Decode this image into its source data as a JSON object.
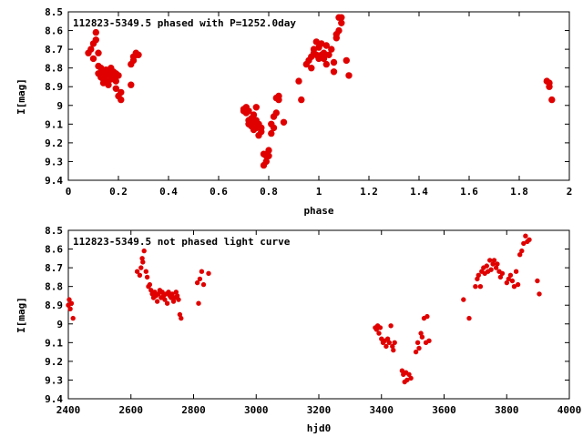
{
  "chart_data": [
    {
      "type": "scatter",
      "title": "112823-5349.5 phased with P=1252.0day",
      "xlabel": "phase",
      "ylabel": "I[mag]",
      "xlim": [
        0,
        2
      ],
      "ylim": [
        9.4,
        8.5
      ],
      "y_inverted": true,
      "grid": false,
      "point_color": "#e00000",
      "x_ticks": [
        "0",
        "0.2",
        "0.4",
        "0.6",
        "0.8",
        "1",
        "1.2",
        "1.4",
        "1.6",
        "1.8",
        "2"
      ],
      "y_ticks": [
        "8.5",
        "8.6",
        "8.7",
        "8.8",
        "8.9",
        "9",
        "9.1",
        "9.2",
        "9.3",
        "9.4"
      ],
      "series": [
        {
          "x": [
            0.08,
            0.09,
            0.1,
            0.1,
            0.11,
            0.11,
            0.12,
            0.12,
            0.12,
            0.13,
            0.13,
            0.14,
            0.14,
            0.14,
            0.15,
            0.15,
            0.15,
            0.16,
            0.16,
            0.17,
            0.17,
            0.17,
            0.18,
            0.18,
            0.19,
            0.19,
            0.19,
            0.2,
            0.2,
            0.21,
            0.21,
            0.25,
            0.25,
            0.26,
            0.26,
            0.27,
            0.27,
            0.28,
            0.7,
            0.7,
            0.71,
            0.71,
            0.72,
            0.72,
            0.72,
            0.73,
            0.73,
            0.74,
            0.74,
            0.74,
            0.75,
            0.75,
            0.75,
            0.76,
            0.76,
            0.77,
            0.77,
            0.78,
            0.78,
            0.79,
            0.79,
            0.8,
            0.8,
            0.81,
            0.81,
            0.82,
            0.82,
            0.83,
            0.83,
            0.84,
            0.84,
            0.86,
            0.92,
            0.93,
            0.95,
            0.96,
            0.97,
            0.97,
            0.98,
            0.98,
            0.99,
            0.99,
            1.0,
            1.0,
            1.01,
            1.01,
            1.02,
            1.02,
            1.03,
            1.03,
            1.04,
            1.05,
            1.06,
            1.06,
            1.07,
            1.07,
            1.08,
            1.08,
            1.09,
            1.09,
            1.11,
            1.12,
            1.91,
            1.92,
            1.92,
            1.93
          ],
          "y": [
            8.72,
            8.7,
            8.67,
            8.75,
            8.61,
            8.65,
            8.72,
            8.79,
            8.83,
            8.8,
            8.85,
            8.82,
            8.86,
            8.88,
            8.84,
            8.81,
            8.87,
            8.83,
            8.89,
            8.8,
            8.84,
            8.86,
            8.85,
            8.82,
            8.83,
            8.87,
            8.91,
            8.84,
            8.95,
            8.93,
            8.97,
            8.89,
            8.78,
            8.74,
            8.76,
            8.73,
            8.72,
            8.73,
            9.02,
            9.03,
            9.04,
            9.01,
            9.03,
            9.08,
            9.1,
            9.07,
            9.11,
            9.05,
            9.1,
            9.13,
            9.01,
            9.08,
            9.12,
            9.1,
            9.16,
            9.12,
            9.14,
            9.26,
            9.32,
            9.27,
            9.3,
            9.24,
            9.27,
            9.15,
            9.1,
            9.06,
            9.12,
            8.96,
            9.04,
            8.97,
            8.95,
            9.09,
            8.87,
            8.97,
            8.78,
            8.76,
            8.74,
            8.8,
            8.7,
            8.72,
            8.73,
            8.66,
            8.75,
            8.69,
            8.67,
            8.73,
            8.72,
            8.75,
            8.68,
            8.78,
            8.73,
            8.7,
            8.82,
            8.77,
            8.62,
            8.64,
            8.6,
            8.53,
            8.56,
            8.53,
            8.76,
            8.84,
            8.87,
            8.88,
            8.9,
            8.97
          ]
        }
      ]
    },
    {
      "type": "scatter",
      "title": "112823-5349.5 not phased light curve",
      "xlabel": "hjd0",
      "ylabel": "I[mag]",
      "xlim": [
        2400,
        4000
      ],
      "ylim": [
        9.4,
        8.5
      ],
      "y_inverted": true,
      "grid": false,
      "point_color": "#e00000",
      "x_ticks": [
        "2400",
        "2600",
        "2800",
        "3000",
        "3200",
        "3400",
        "3600",
        "3800",
        "4000"
      ],
      "y_ticks": [
        "8.5",
        "8.6",
        "8.7",
        "8.8",
        "8.9",
        "9",
        "9.1",
        "9.2",
        "9.3",
        "9.4"
      ],
      "series": [
        {
          "x": [
            2400,
            2403,
            2406,
            2410,
            2415,
            2620,
            2628,
            2632,
            2636,
            2638,
            2642,
            2648,
            2652,
            2656,
            2660,
            2664,
            2668,
            2672,
            2676,
            2680,
            2684,
            2688,
            2692,
            2696,
            2700,
            2704,
            2708,
            2712,
            2716,
            2720,
            2724,
            2728,
            2732,
            2736,
            2740,
            2744,
            2748,
            2752,
            2756,
            2760,
            2812,
            2816,
            2820,
            2826,
            2832,
            2848,
            3380,
            3384,
            3388,
            3392,
            3396,
            3400,
            3405,
            3410,
            3415,
            3420,
            3425,
            3430,
            3435,
            3438,
            3442,
            3466,
            3470,
            3474,
            3478,
            3482,
            3488,
            3494,
            3510,
            3516,
            3520,
            3526,
            3530,
            3536,
            3542,
            3546,
            3552,
            3662,
            3680,
            3700,
            3706,
            3710,
            3716,
            3720,
            3726,
            3730,
            3736,
            3740,
            3746,
            3750,
            3756,
            3760,
            3766,
            3770,
            3776,
            3780,
            3786,
            3800,
            3806,
            3812,
            3818,
            3824,
            3830,
            3836,
            3842,
            3848,
            3854,
            3860,
            3866,
            3872,
            3898,
            3904
          ],
          "y": [
            8.9,
            8.87,
            8.92,
            8.89,
            8.97,
            8.72,
            8.74,
            8.7,
            8.65,
            8.67,
            8.61,
            8.72,
            8.75,
            8.8,
            8.79,
            8.82,
            8.84,
            8.86,
            8.83,
            8.85,
            8.88,
            8.84,
            8.82,
            8.86,
            8.83,
            8.85,
            8.87,
            8.84,
            8.89,
            8.83,
            8.85,
            8.86,
            8.84,
            8.88,
            8.86,
            8.83,
            8.85,
            8.87,
            8.95,
            8.97,
            8.78,
            8.89,
            8.76,
            8.72,
            8.79,
            8.73,
            9.02,
            9.03,
            9.01,
            9.05,
            9.02,
            9.08,
            9.1,
            9.09,
            9.12,
            9.08,
            9.1,
            9.01,
            9.12,
            9.14,
            9.1,
            9.25,
            9.27,
            9.31,
            9.26,
            9.3,
            9.27,
            9.29,
            9.15,
            9.1,
            9.13,
            9.05,
            9.07,
            8.97,
            9.1,
            8.96,
            9.09,
            8.87,
            8.97,
            8.8,
            8.76,
            8.74,
            8.8,
            8.72,
            8.7,
            8.73,
            8.69,
            8.72,
            8.66,
            8.71,
            8.68,
            8.66,
            8.7,
            8.68,
            8.72,
            8.75,
            8.73,
            8.78,
            8.76,
            8.74,
            8.77,
            8.8,
            8.72,
            8.79,
            8.63,
            8.61,
            8.57,
            8.53,
            8.56,
            8.55,
            8.77,
            8.84
          ]
        }
      ]
    }
  ]
}
